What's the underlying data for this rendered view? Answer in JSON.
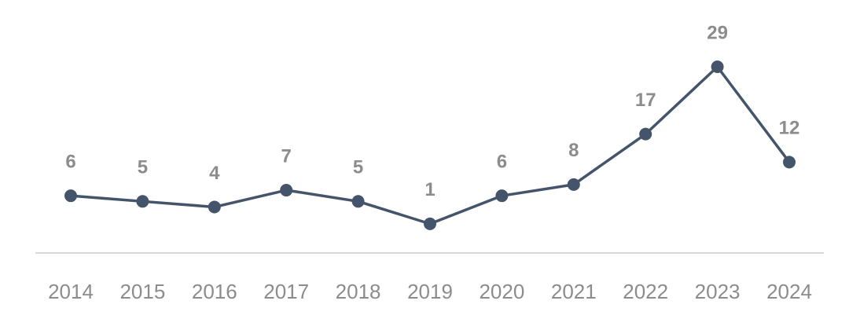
{
  "chart_data": {
    "type": "line",
    "categories": [
      "2014",
      "2015",
      "2016",
      "2017",
      "2018",
      "2019",
      "2020",
      "2021",
      "2022",
      "2023",
      "2024"
    ],
    "values": [
      6,
      5,
      4,
      7,
      5,
      1,
      6,
      8,
      17,
      29,
      12
    ],
    "color": "#44546a"
  }
}
